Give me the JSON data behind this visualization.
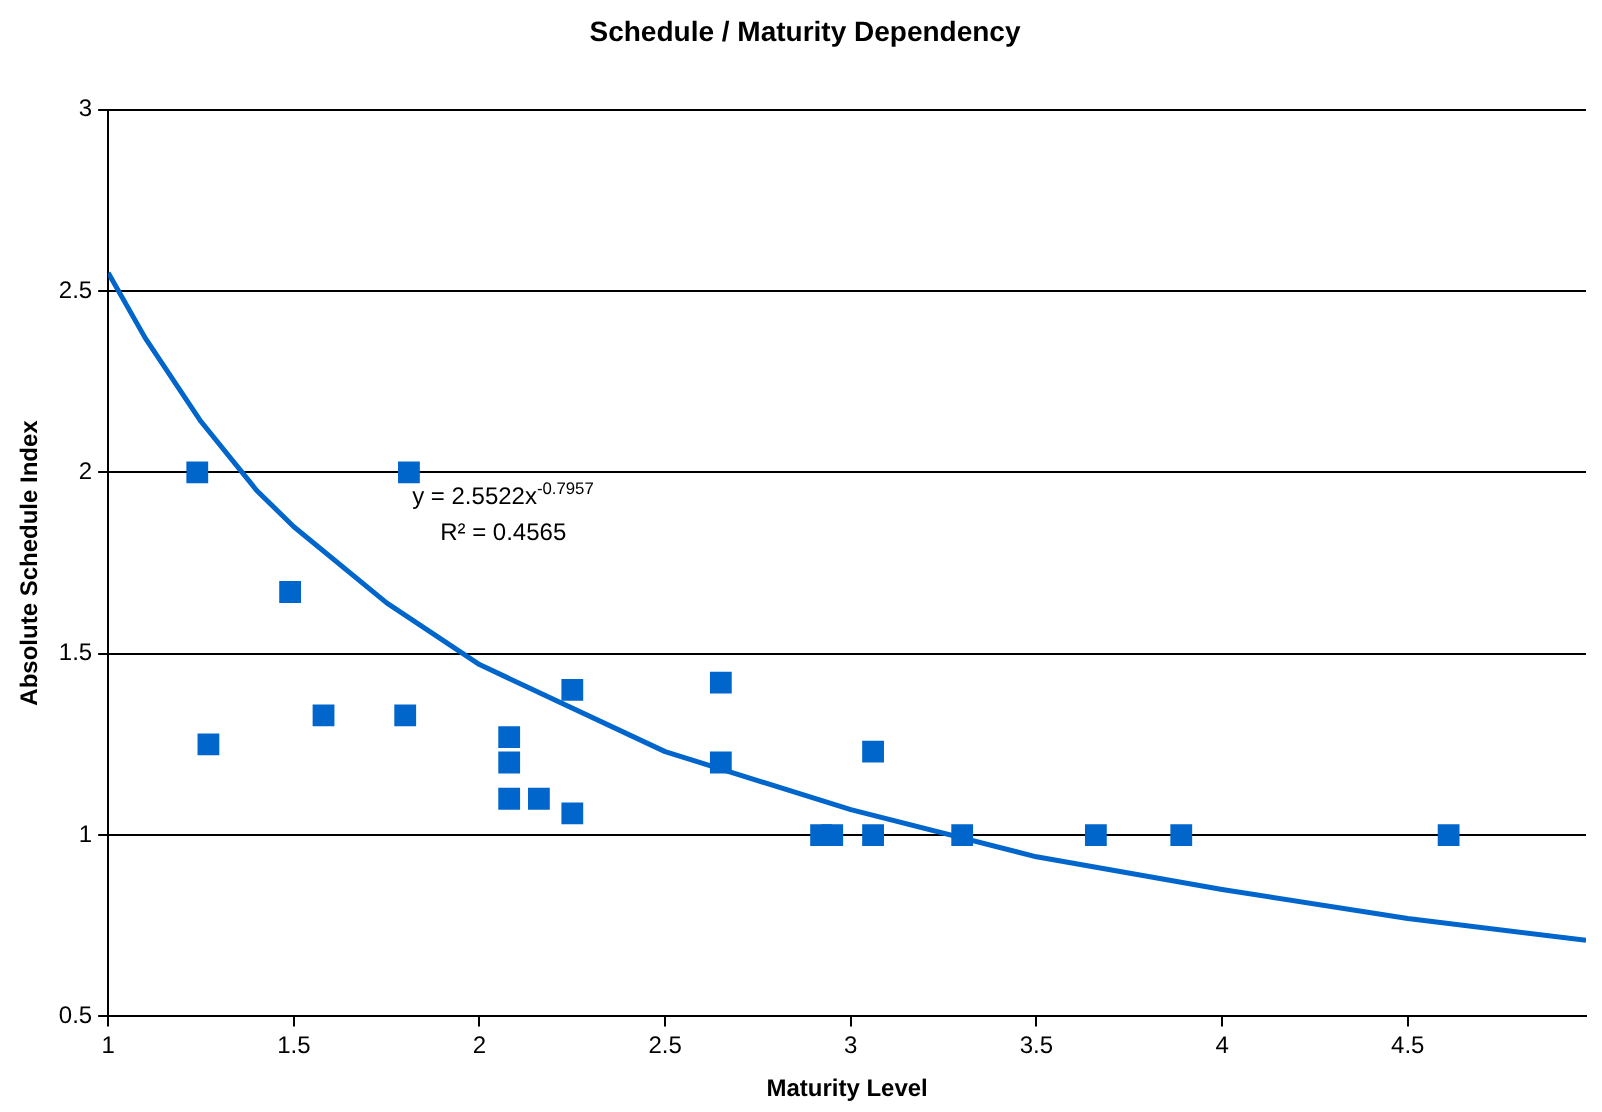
{
  "chart_data": {
    "type": "scatter",
    "title": "Schedule / Maturity Dependency",
    "xlabel": "Maturity Level",
    "ylabel": "Absolute Schedule Index",
    "xlim": [
      1,
      4.98
    ],
    "xticks": [
      1,
      1.5,
      2,
      2.5,
      3,
      3.5,
      4,
      4.5
    ],
    "ylim": [
      0.5,
      3
    ],
    "yticks": [
      0.5,
      1,
      1.5,
      2,
      2.5,
      3
    ],
    "grid": "y",
    "legend": false,
    "marker": "square",
    "series": [
      {
        "color": "#0066cc",
        "x": [
          1.24,
          1.27,
          1.49,
          1.58,
          1.8,
          1.81,
          2.08,
          2.08,
          2.08,
          2.16,
          2.25,
          2.25,
          2.65,
          2.65,
          2.92,
          2.95,
          3.06,
          3.06,
          3.3,
          3.66,
          3.89,
          4.61
        ],
        "values": [
          2.0,
          1.25,
          1.67,
          1.33,
          1.33,
          2.0,
          1.27,
          1.2,
          1.1,
          1.1,
          1.4,
          1.06,
          1.42,
          1.2,
          1.0,
          1.0,
          1.23,
          1.0,
          1.0,
          1.0,
          1.0,
          1.0
        ]
      },
      {
        "type": "line",
        "color": "#0066cc",
        "marker": "none",
        "line_style": "solid",
        "x": [
          1,
          1.1,
          1.25,
          1.4,
          1.5,
          1.75,
          2,
          2.5,
          3,
          3.5,
          4,
          4.5,
          4.98
        ],
        "values": [
          2.55,
          2.37,
          2.14,
          1.95,
          1.85,
          1.64,
          1.47,
          1.23,
          1.07,
          0.94,
          0.85,
          0.77,
          0.71
        ]
      }
    ],
    "annotations": [
      "y = 2.5522x$^{-0.7957}$",
      "R² = 0.4565"
    ]
  }
}
